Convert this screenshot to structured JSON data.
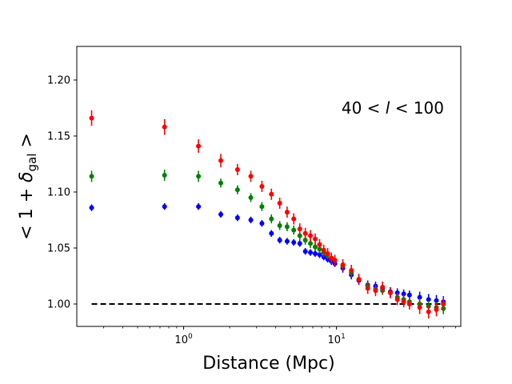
{
  "chart_data": {
    "type": "scatter",
    "annotation": {
      "prefix": "40 < ",
      "var": "l",
      "suffix": " < 100"
    },
    "xlabel": "Distance (Mpc)",
    "ylabel": {
      "open": "< 1 + ",
      "symbol": "δ",
      "subscript": "gal",
      "close": " >"
    },
    "xscale": "log",
    "xlim": [
      0.2,
      65
    ],
    "ylim": [
      0.98,
      1.23
    ],
    "yticks": [
      1.0,
      1.05,
      1.1,
      1.15,
      1.2
    ],
    "ytick_labels": [
      "1.00",
      "1.05",
      "1.10",
      "1.15",
      "1.20"
    ],
    "xticks": [
      {
        "value": 1,
        "base": "10",
        "exp": "0"
      },
      {
        "value": 10,
        "base": "10",
        "exp": "1"
      }
    ],
    "reference_line": {
      "y": 1.0,
      "x_from": 0.25,
      "x_to": 50,
      "style": "dashed",
      "color": "#000000"
    },
    "series": [
      {
        "name": "blue",
        "color": "#0000ff",
        "x": [
          0.25,
          0.75,
          1.25,
          1.75,
          2.25,
          2.75,
          3.25,
          3.75,
          4.25,
          4.75,
          5.25,
          5.75,
          6.25,
          6.75,
          7.25,
          7.75,
          8.25,
          8.75,
          9.25,
          9.75,
          11,
          12.5,
          14,
          16,
          18,
          20,
          22.5,
          25,
          27.5,
          30,
          35,
          40,
          45,
          50
        ],
        "y": [
          1.086,
          1.087,
          1.087,
          1.08,
          1.077,
          1.075,
          1.072,
          1.063,
          1.057,
          1.056,
          1.055,
          1.054,
          1.047,
          1.046,
          1.045,
          1.044,
          1.042,
          1.04,
          1.038,
          1.036,
          1.032,
          1.026,
          1.021,
          1.017,
          1.016,
          1.014,
          1.011,
          1.01,
          1.009,
          1.008,
          1.006,
          1.004,
          1.003,
          1.002
        ],
        "yerr": [
          0.003,
          0.003,
          0.003,
          0.003,
          0.003,
          0.003,
          0.003,
          0.003,
          0.003,
          0.003,
          0.003,
          0.003,
          0.003,
          0.003,
          0.003,
          0.003,
          0.003,
          0.003,
          0.003,
          0.003,
          0.004,
          0.004,
          0.004,
          0.004,
          0.004,
          0.004,
          0.004,
          0.004,
          0.004,
          0.004,
          0.005,
          0.005,
          0.005,
          0.005
        ]
      },
      {
        "name": "green",
        "color": "#008000",
        "x": [
          0.25,
          0.75,
          1.25,
          1.75,
          2.25,
          2.75,
          3.25,
          3.75,
          4.25,
          4.75,
          5.25,
          5.75,
          6.25,
          6.75,
          7.25,
          7.75,
          8.25,
          8.75,
          9.25,
          9.75,
          11,
          12.5,
          14,
          16,
          18,
          20,
          22.5,
          25,
          27.5,
          30,
          35,
          40,
          45,
          50
        ],
        "y": [
          1.114,
          1.115,
          1.114,
          1.108,
          1.102,
          1.095,
          1.087,
          1.076,
          1.07,
          1.069,
          1.066,
          1.061,
          1.057,
          1.054,
          1.051,
          1.049,
          1.046,
          1.044,
          1.041,
          1.039,
          1.034,
          1.028,
          1.022,
          1.016,
          1.013,
          1.012,
          1.01,
          1.006,
          1.004,
          1.002,
          1.0,
          0.998,
          0.997,
          0.996
        ],
        "yerr": [
          0.005,
          0.005,
          0.005,
          0.004,
          0.004,
          0.004,
          0.004,
          0.004,
          0.004,
          0.004,
          0.004,
          0.004,
          0.004,
          0.004,
          0.004,
          0.004,
          0.004,
          0.004,
          0.004,
          0.004,
          0.004,
          0.004,
          0.004,
          0.004,
          0.004,
          0.004,
          0.004,
          0.004,
          0.004,
          0.004,
          0.005,
          0.005,
          0.005,
          0.005
        ]
      },
      {
        "name": "red",
        "color": "#ff0000",
        "x": [
          0.25,
          0.75,
          1.25,
          1.75,
          2.25,
          2.75,
          3.25,
          3.75,
          4.25,
          4.75,
          5.25,
          5.75,
          6.25,
          6.75,
          7.25,
          7.75,
          8.25,
          8.75,
          9.25,
          9.75,
          11,
          12.5,
          14,
          16,
          18,
          20,
          22.5,
          25,
          27.5,
          30,
          35,
          40,
          45,
          50
        ],
        "y": [
          1.166,
          1.158,
          1.141,
          1.128,
          1.12,
          1.114,
          1.105,
          1.098,
          1.09,
          1.082,
          1.076,
          1.067,
          1.063,
          1.061,
          1.058,
          1.053,
          1.048,
          1.045,
          1.041,
          1.039,
          1.035,
          1.03,
          1.022,
          1.014,
          1.012,
          1.015,
          1.01,
          1.004,
          1.002,
          1.0,
          0.997,
          0.993,
          0.995,
          1.0
        ],
        "yerr": [
          0.007,
          0.007,
          0.006,
          0.006,
          0.005,
          0.005,
          0.005,
          0.005,
          0.005,
          0.005,
          0.005,
          0.005,
          0.005,
          0.005,
          0.005,
          0.005,
          0.005,
          0.005,
          0.005,
          0.005,
          0.005,
          0.005,
          0.005,
          0.005,
          0.005,
          0.005,
          0.005,
          0.005,
          0.005,
          0.005,
          0.006,
          0.006,
          0.006,
          0.006
        ]
      }
    ]
  }
}
